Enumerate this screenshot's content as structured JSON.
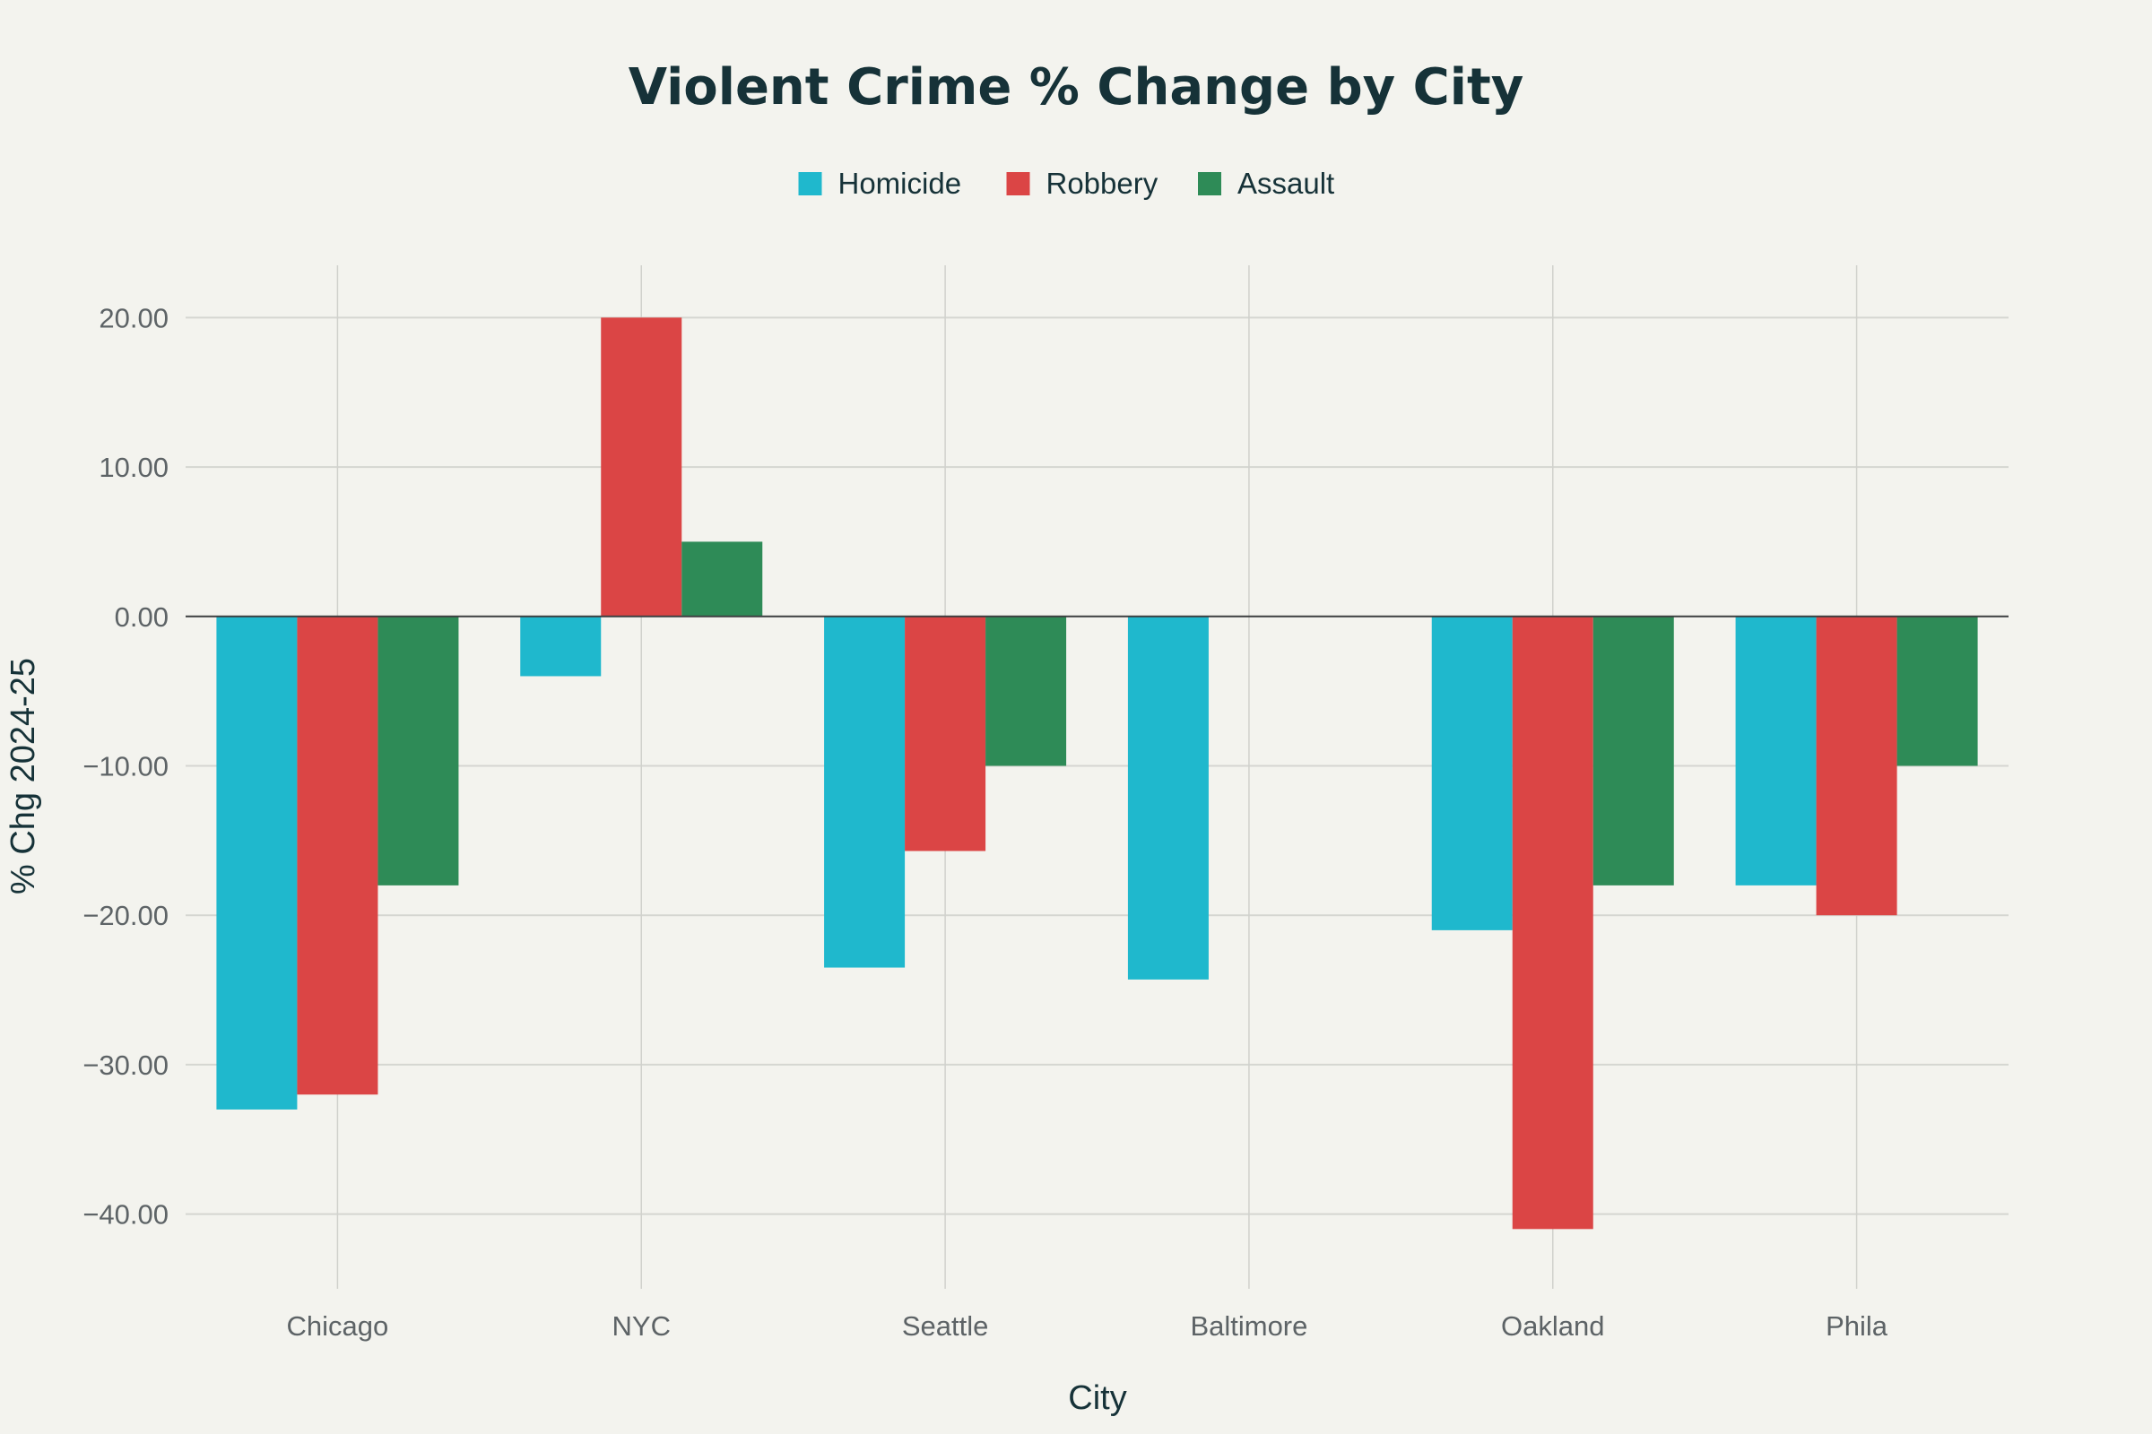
{
  "chart_data": {
    "type": "bar",
    "title": "Violent Crime % Change by City",
    "xlabel": "City",
    "ylabel": "% Chg 2024-25",
    "categories": [
      "Chicago",
      "NYC",
      "Seattle",
      "Baltimore",
      "Oakland",
      "Phila"
    ],
    "series": [
      {
        "name": "Homicide",
        "color": "#1fb8cd",
        "values": [
          -33,
          -4,
          -23.5,
          -24.3,
          -21,
          -18
        ]
      },
      {
        "name": "Robbery",
        "color": "#db4545",
        "values": [
          -32,
          20,
          -15.7,
          null,
          -41,
          -20
        ]
      },
      {
        "name": "Assault",
        "color": "#2e8b57",
        "values": [
          -18,
          5,
          -10,
          null,
          -18,
          -10
        ]
      }
    ],
    "ylim": [
      -45,
      23.5
    ],
    "yticks": [
      20,
      10,
      0,
      -10,
      -20,
      -30,
      -40
    ],
    "ytick_labels": [
      "20.00",
      "10.00",
      "0.00",
      "−10.00",
      "−20.00",
      "−30.00",
      "−40.00"
    ],
    "legend_position": "top-center",
    "grid": true
  }
}
